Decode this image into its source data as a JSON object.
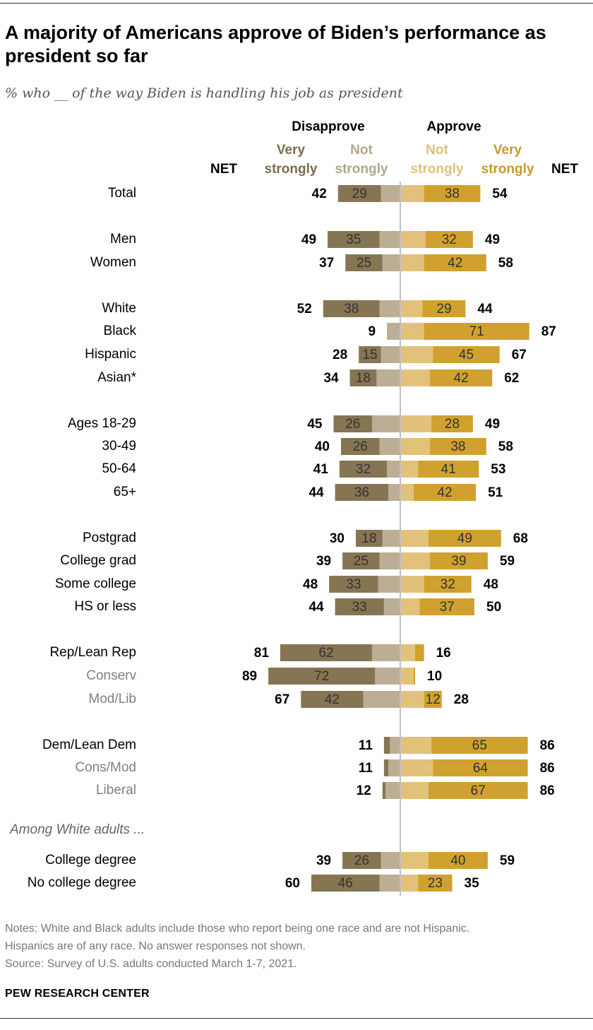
{
  "title": "A majority of Americans approve of Biden’s performance as president so far",
  "subtitle": "% who __ of the way Biden is handling his job as president",
  "notes": [
    "Notes: White and Black adults include those who report being one race and are not Hispanic.",
    "Hispanics are of any race. No answer responses not shown.",
    "Source: Survey of U.S. adults conducted March 1-7, 2021."
  ],
  "brand": "PEW RESEARCH CENTER",
  "headers": {
    "disapprove": "Disapprove",
    "approve": "Approve",
    "net_left": "NET",
    "net_right": "NET",
    "very_strongly_left": [
      "Very",
      "strongly"
    ],
    "not_strongly_left": [
      "Not",
      "strongly"
    ],
    "not_strongly_right": [
      "Not",
      "strongly"
    ],
    "very_strongly_right": [
      "Very",
      "strongly"
    ]
  },
  "colors": {
    "dis_very": "#857553",
    "dis_not": "#bbae94",
    "app_not": "#e2c27a",
    "app_very": "#d0a12e",
    "header_dis_very": "#7b6b47",
    "header_dis_not": "#b2a68d",
    "header_app_not": "#dfc07a",
    "header_app_very": "#c89a2c",
    "sub_label": "#808080",
    "axis": "#c0c0c0"
  },
  "chart_data": {
    "type": "diverging-bar",
    "title": "A majority of Americans approve of Biden’s performance as president so far",
    "series": [
      "Disapprove: Very strongly",
      "Disapprove: Not strongly",
      "Approve: Not strongly",
      "Approve: Very strongly"
    ],
    "section_label": "Among White adults ...",
    "rows": [
      {
        "label": "Total",
        "dis_very": 29,
        "dis_net": 42,
        "app_very": 38,
        "app_net": 54,
        "sub": false
      },
      {
        "label": "Men",
        "dis_very": 35,
        "dis_net": 49,
        "app_very": 32,
        "app_net": 49,
        "sub": false
      },
      {
        "label": "Women",
        "dis_very": 25,
        "dis_net": 37,
        "app_very": 42,
        "app_net": 58,
        "sub": false
      },
      {
        "label": "White",
        "dis_very": 38,
        "dis_net": 52,
        "app_very": 29,
        "app_net": 44,
        "sub": false
      },
      {
        "label": "Black",
        "dis_very": null,
        "dis_net": 9,
        "app_very": 71,
        "app_net": 87,
        "sub": false
      },
      {
        "label": "Hispanic",
        "dis_very": 15,
        "dis_net": 28,
        "app_very": 45,
        "app_net": 67,
        "sub": false
      },
      {
        "label": "Asian*",
        "dis_very": 18,
        "dis_net": 34,
        "app_very": 42,
        "app_net": 62,
        "sub": false
      },
      {
        "label": "Ages 18-29",
        "dis_very": 26,
        "dis_net": 45,
        "app_very": 28,
        "app_net": 49,
        "sub": false
      },
      {
        "label": "30-49",
        "dis_very": 26,
        "dis_net": 40,
        "app_very": 38,
        "app_net": 58,
        "sub": false
      },
      {
        "label": "50-64",
        "dis_very": 32,
        "dis_net": 41,
        "app_very": 41,
        "app_net": 53,
        "sub": false
      },
      {
        "label": "65+",
        "dis_very": 36,
        "dis_net": 44,
        "app_very": 42,
        "app_net": 51,
        "sub": false
      },
      {
        "label": "Postgrad",
        "dis_very": 18,
        "dis_net": 30,
        "app_very": 49,
        "app_net": 68,
        "sub": false
      },
      {
        "label": "College grad",
        "dis_very": 25,
        "dis_net": 39,
        "app_very": 39,
        "app_net": 59,
        "sub": false
      },
      {
        "label": "Some college",
        "dis_very": 33,
        "dis_net": 48,
        "app_very": 32,
        "app_net": 48,
        "sub": false
      },
      {
        "label": "HS or less",
        "dis_very": 33,
        "dis_net": 44,
        "app_very": 37,
        "app_net": 50,
        "sub": false
      },
      {
        "label": "Rep/Lean Rep",
        "dis_very": 62,
        "dis_net": 81,
        "app_very": null,
        "app_net": 16,
        "app_very_est": 6,
        "sub": false
      },
      {
        "label": "Conserv",
        "dis_very": 72,
        "dis_net": 89,
        "app_very": null,
        "app_net": 10,
        "app_very_est": 1,
        "sub": true
      },
      {
        "label": "Mod/Lib",
        "dis_very": 42,
        "dis_net": 67,
        "app_very": 12,
        "app_net": 28,
        "sub": true
      },
      {
        "label": "Dem/Lean Dem",
        "dis_very": null,
        "dis_net": 11,
        "dis_very_est": 4,
        "app_very": 65,
        "app_net": 86,
        "sub": false
      },
      {
        "label": "Cons/Mod",
        "dis_very": null,
        "dis_net": 11,
        "dis_very_est": 3,
        "app_very": 64,
        "app_net": 86,
        "sub": true
      },
      {
        "label": "Liberal",
        "dis_very": null,
        "dis_net": 12,
        "dis_very_est": 2,
        "app_very": 67,
        "app_net": 86,
        "sub": true
      },
      {
        "label": "College degree",
        "dis_very": 26,
        "dis_net": 39,
        "app_very": 40,
        "app_net": 59,
        "sub": false
      },
      {
        "label": "No college degree",
        "dis_very": 46,
        "dis_net": 60,
        "app_very": 23,
        "app_net": 35,
        "sub": false
      }
    ]
  }
}
